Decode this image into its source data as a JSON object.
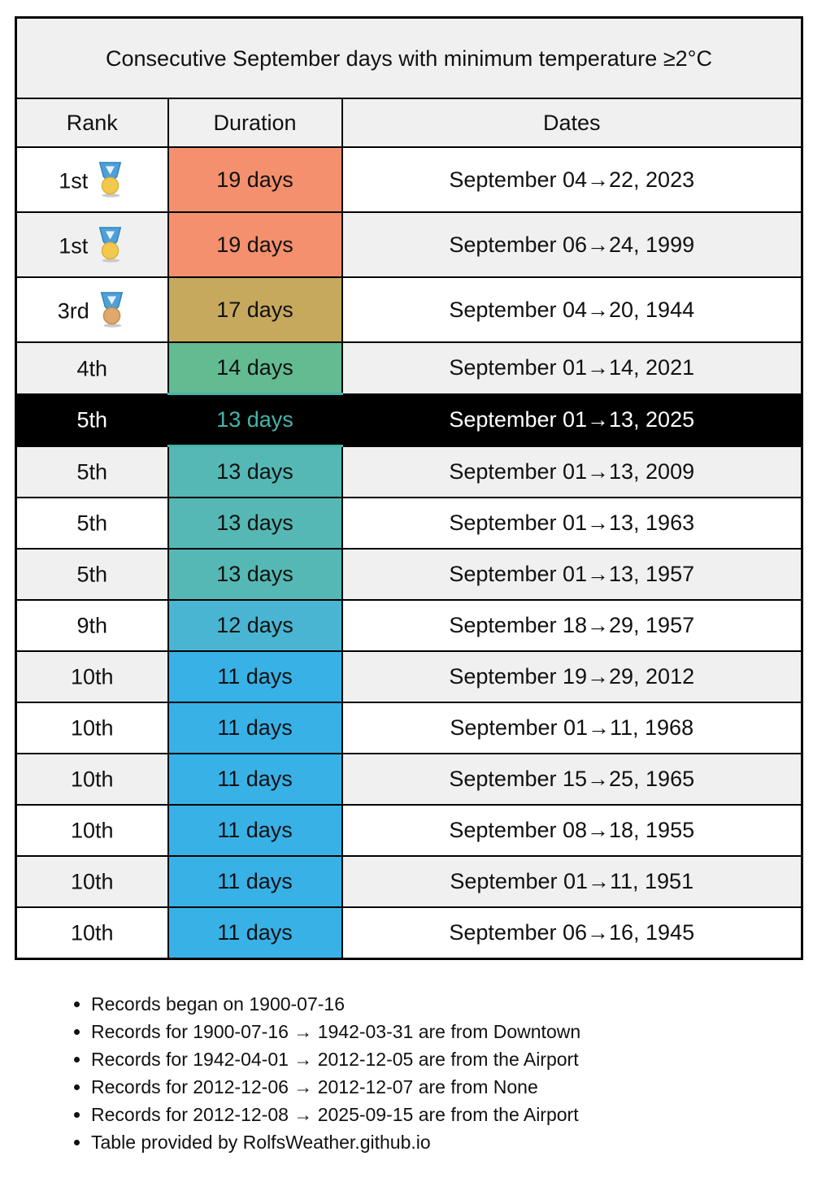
{
  "table": {
    "title": "Consecutive September days with minimum temperature ≥2°C",
    "columns": {
      "rank": "Rank",
      "duration": "Duration",
      "dates": "Dates"
    },
    "rows": [
      {
        "rank": "1st",
        "medal": "gold",
        "duration": "19 days",
        "dates": "September 04→22, 2023",
        "row_bg": "#FFFFFF",
        "duration_bg": "#F4906E"
      },
      {
        "rank": "1st",
        "medal": "gold",
        "duration": "19 days",
        "dates": "September 06→24, 1999",
        "row_bg": "#F0F0F0",
        "duration_bg": "#F4906E"
      },
      {
        "rank": "3rd",
        "medal": "bronze",
        "duration": "17 days",
        "dates": "September 04→20, 1944",
        "row_bg": "#FFFFFF",
        "duration_bg": "#C7A95E"
      },
      {
        "rank": "4th",
        "medal": null,
        "duration": "14 days",
        "dates": "September 01→14, 2021",
        "row_bg": "#F0F0F0",
        "duration_bg": "#63BB92"
      },
      {
        "rank": "5th",
        "medal": null,
        "duration": "13 days",
        "dates": "September 01→13, 2025",
        "row_bg": "#000000",
        "duration_bg": "#000000",
        "highlight": true,
        "duration_text_color": "#45B5AB"
      },
      {
        "rank": "5th",
        "medal": null,
        "duration": "13 days",
        "dates": "September 01→13, 2009",
        "row_bg": "#F0F0F0",
        "duration_bg": "#55B8B4"
      },
      {
        "rank": "5th",
        "medal": null,
        "duration": "13 days",
        "dates": "September 01→13, 1963",
        "row_bg": "#FFFFFF",
        "duration_bg": "#55B8B4"
      },
      {
        "rank": "5th",
        "medal": null,
        "duration": "13 days",
        "dates": "September 01→13, 1957",
        "row_bg": "#F0F0F0",
        "duration_bg": "#55B8B4"
      },
      {
        "rank": "9th",
        "medal": null,
        "duration": "12 days",
        "dates": "September 18→29, 1957",
        "row_bg": "#FFFFFF",
        "duration_bg": "#49B5D2"
      },
      {
        "rank": "10th",
        "medal": null,
        "duration": "11 days",
        "dates": "September 19→29, 2012",
        "row_bg": "#F0F0F0",
        "duration_bg": "#38B1E6"
      },
      {
        "rank": "10th",
        "medal": null,
        "duration": "11 days",
        "dates": "September 01→11, 1968",
        "row_bg": "#FFFFFF",
        "duration_bg": "#38B1E6"
      },
      {
        "rank": "10th",
        "medal": null,
        "duration": "11 days",
        "dates": "September 15→25, 1965",
        "row_bg": "#F0F0F0",
        "duration_bg": "#38B1E6"
      },
      {
        "rank": "10th",
        "medal": null,
        "duration": "11 days",
        "dates": "September 08→18, 1955",
        "row_bg": "#FFFFFF",
        "duration_bg": "#38B1E6"
      },
      {
        "rank": "10th",
        "medal": null,
        "duration": "11 days",
        "dates": "September 01→11, 1951",
        "row_bg": "#F0F0F0",
        "duration_bg": "#38B1E6"
      },
      {
        "rank": "10th",
        "medal": null,
        "duration": "11 days",
        "dates": "September 06→16, 1945",
        "row_bg": "#FFFFFF",
        "duration_bg": "#38B1E6"
      }
    ]
  },
  "footnotes": [
    "Records began on 1900-07-16",
    "Records for 1900-07-16 → 1942-03-31 are from Downtown",
    "Records for 1942-04-01 → 2012-12-05 are from the Airport",
    "Records for 2012-12-06 → 2012-12-07 are from None",
    "Records for 2012-12-08 → 2025-09-15 are from the Airport",
    "Table provided by RolfsWeather.github.io"
  ],
  "colors": {
    "header_bg": "#F0F0F0",
    "alt_row_bg": "#F0F0F0",
    "highlight_row_bg": "#000000",
    "highlight_duration_text": "#45B5AB",
    "border": "#000000",
    "duration_19d": "#F4906E",
    "duration_17d": "#C7A95E",
    "duration_14d": "#63BB92",
    "duration_13d": "#55B8B4",
    "duration_12d": "#49B5D2",
    "duration_11d": "#38B1E6"
  }
}
